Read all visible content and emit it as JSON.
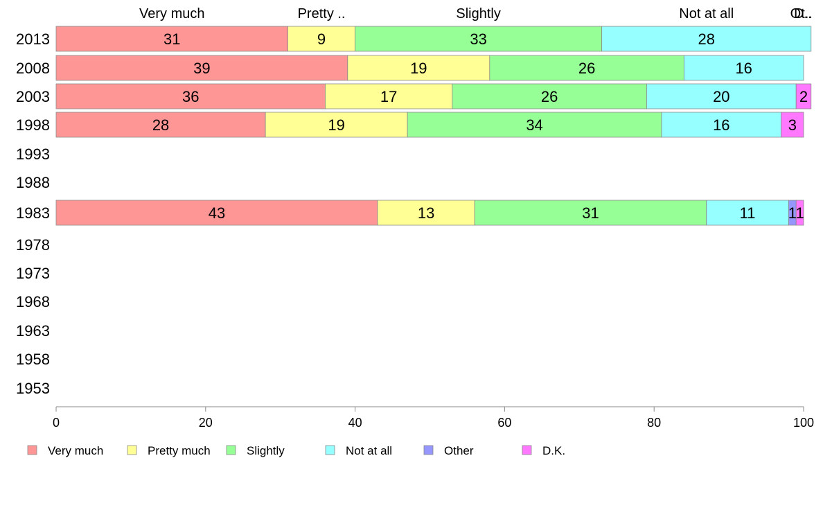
{
  "chart_data": {
    "type": "bar",
    "orientation": "horizontal",
    "stacked": true,
    "categories": [
      "2013",
      "2008",
      "2003",
      "1998",
      "1993",
      "1988",
      "1983",
      "1978",
      "1973",
      "1968",
      "1963",
      "1958",
      "1953"
    ],
    "top_labels": [
      "Very much",
      "Pretty ..",
      "Slightly",
      "Not at all",
      "Ot..",
      "D.."
    ],
    "series": [
      {
        "name": "Very much",
        "color": "#ff9696",
        "values": [
          31,
          39,
          36,
          28,
          null,
          null,
          43,
          null,
          null,
          null,
          null,
          null,
          null
        ]
      },
      {
        "name": "Pretty much",
        "color": "#ffff96",
        "values": [
          9,
          19,
          17,
          19,
          null,
          null,
          13,
          null,
          null,
          null,
          null,
          null,
          null
        ]
      },
      {
        "name": "Slightly",
        "color": "#96ff96",
        "values": [
          33,
          26,
          26,
          34,
          null,
          null,
          31,
          null,
          null,
          null,
          null,
          null,
          null
        ]
      },
      {
        "name": "Not at all",
        "color": "#96ffff",
        "values": [
          28,
          16,
          20,
          16,
          null,
          null,
          11,
          null,
          null,
          null,
          null,
          null,
          null
        ]
      },
      {
        "name": "Other",
        "color": "#9696ff",
        "values": [
          0,
          0,
          0,
          0,
          null,
          null,
          1,
          null,
          null,
          null,
          null,
          null,
          null
        ]
      },
      {
        "name": "D.K.",
        "color": "#ff78ff",
        "values": [
          0,
          0,
          2,
          3,
          null,
          null,
          1,
          null,
          null,
          null,
          null,
          null,
          null
        ]
      }
    ],
    "xlim": [
      0,
      100
    ],
    "xticks": [
      0,
      20,
      40,
      60,
      80,
      100
    ],
    "grid": false,
    "legend": "bottom"
  }
}
